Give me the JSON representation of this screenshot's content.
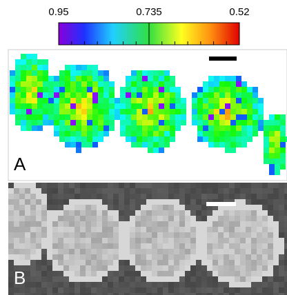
{
  "colorbar": {
    "lim": [
      0.95,
      0.52
    ],
    "ticks": [
      0.95,
      0.735,
      0.52
    ]
  },
  "panels": [
    {
      "label": "A"
    },
    {
      "label": "B"
    }
  ]
}
